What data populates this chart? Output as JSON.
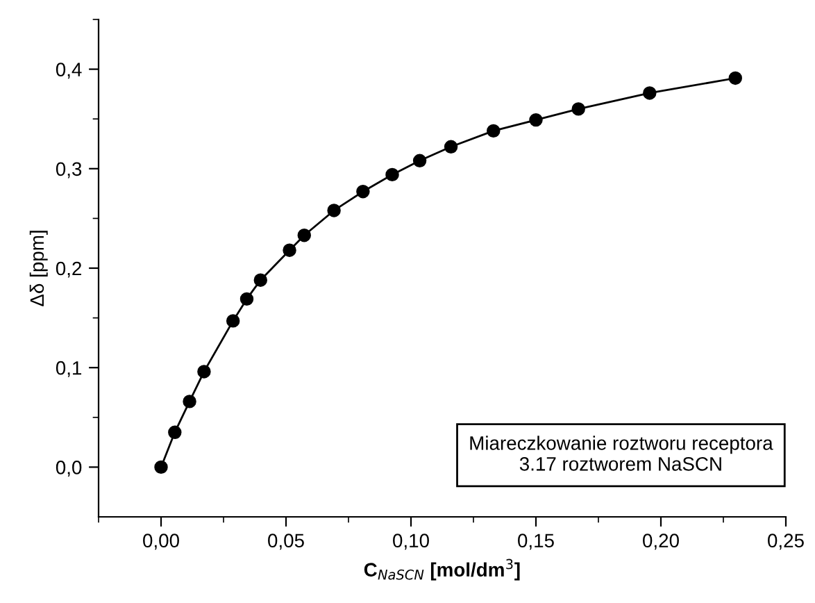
{
  "chart_data": {
    "type": "line",
    "xlabel": "C$_{NaSCN}$ [mol/dm$^{3}$]",
    "ylabel": "Δδ [ppm]",
    "x": [
      0,
      0.0055,
      0.0114,
      0.0172,
      0.0288,
      0.0343,
      0.0398,
      0.0514,
      0.0573,
      0.0692,
      0.0808,
      0.0925,
      0.1035,
      0.116,
      0.133,
      0.15,
      0.167,
      0.1955,
      0.2298
    ],
    "series": [
      {
        "color": "#000000",
        "values": [
          0,
          0.035,
          0.066,
          0.096,
          0.147,
          0.169,
          0.188,
          0.218,
          0.233,
          0.258,
          0.277,
          0.294,
          0.308,
          0.322,
          0.338,
          0.349,
          0.36,
          0.376,
          0.391
        ]
      }
    ],
    "marker": "circle",
    "line_style": "solid",
    "grid": false,
    "legend": false,
    "xlim": [
      -0.025,
      0.25
    ],
    "ylim": [
      -0.05,
      0.45
    ],
    "xticks": [
      {
        "value": 0,
        "label": "0,00"
      },
      {
        "value": 0.05,
        "label": "0,05"
      },
      {
        "value": 0.1,
        "label": "0,10"
      },
      {
        "value": 0.15,
        "label": "0,15"
      },
      {
        "value": 0.2,
        "label": "0,20"
      },
      {
        "value": 0.25,
        "label": "0,25"
      }
    ],
    "yticks": [
      {
        "value": 0,
        "label": "0,0"
      },
      {
        "value": 0.1,
        "label": "0,1"
      },
      {
        "value": 0.2,
        "label": "0,2"
      },
      {
        "value": 0.3,
        "label": "0,3"
      },
      {
        "value": 0.4,
        "label": "0,4"
      }
    ],
    "annotations": [
      "Miareczkowanie roztworu receptora\n3.17 roztworem NaSCN"
    ]
  }
}
